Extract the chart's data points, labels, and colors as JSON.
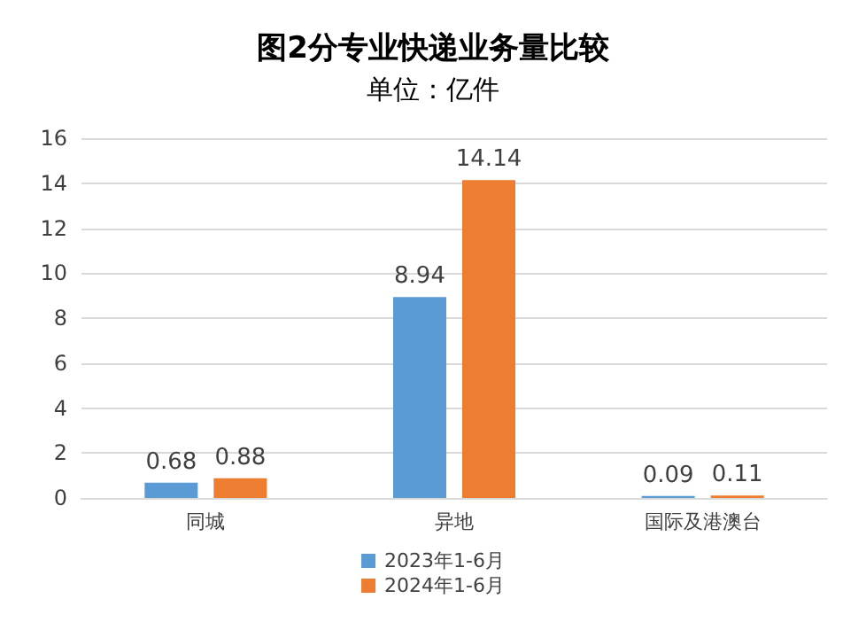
{
  "chart_data": {
    "type": "bar",
    "title": "图2分专业快递业务量比较",
    "subtitle": "单位：亿件",
    "categories": [
      "同城",
      "异地",
      "国际及港澳台"
    ],
    "series": [
      {
        "name": "2023年1-6月",
        "color": "#5b9bd5",
        "values": [
          0.68,
          8.94,
          0.09
        ]
      },
      {
        "name": "2024年1-6月",
        "color": "#ed7d31",
        "values": [
          0.88,
          14.14,
          0.11
        ]
      }
    ],
    "ylim": [
      0,
      16
    ],
    "yticks": [
      0,
      2,
      4,
      6,
      8,
      10,
      12,
      14,
      16
    ],
    "grid": "y",
    "legend": "bottom",
    "data_labels": true
  }
}
